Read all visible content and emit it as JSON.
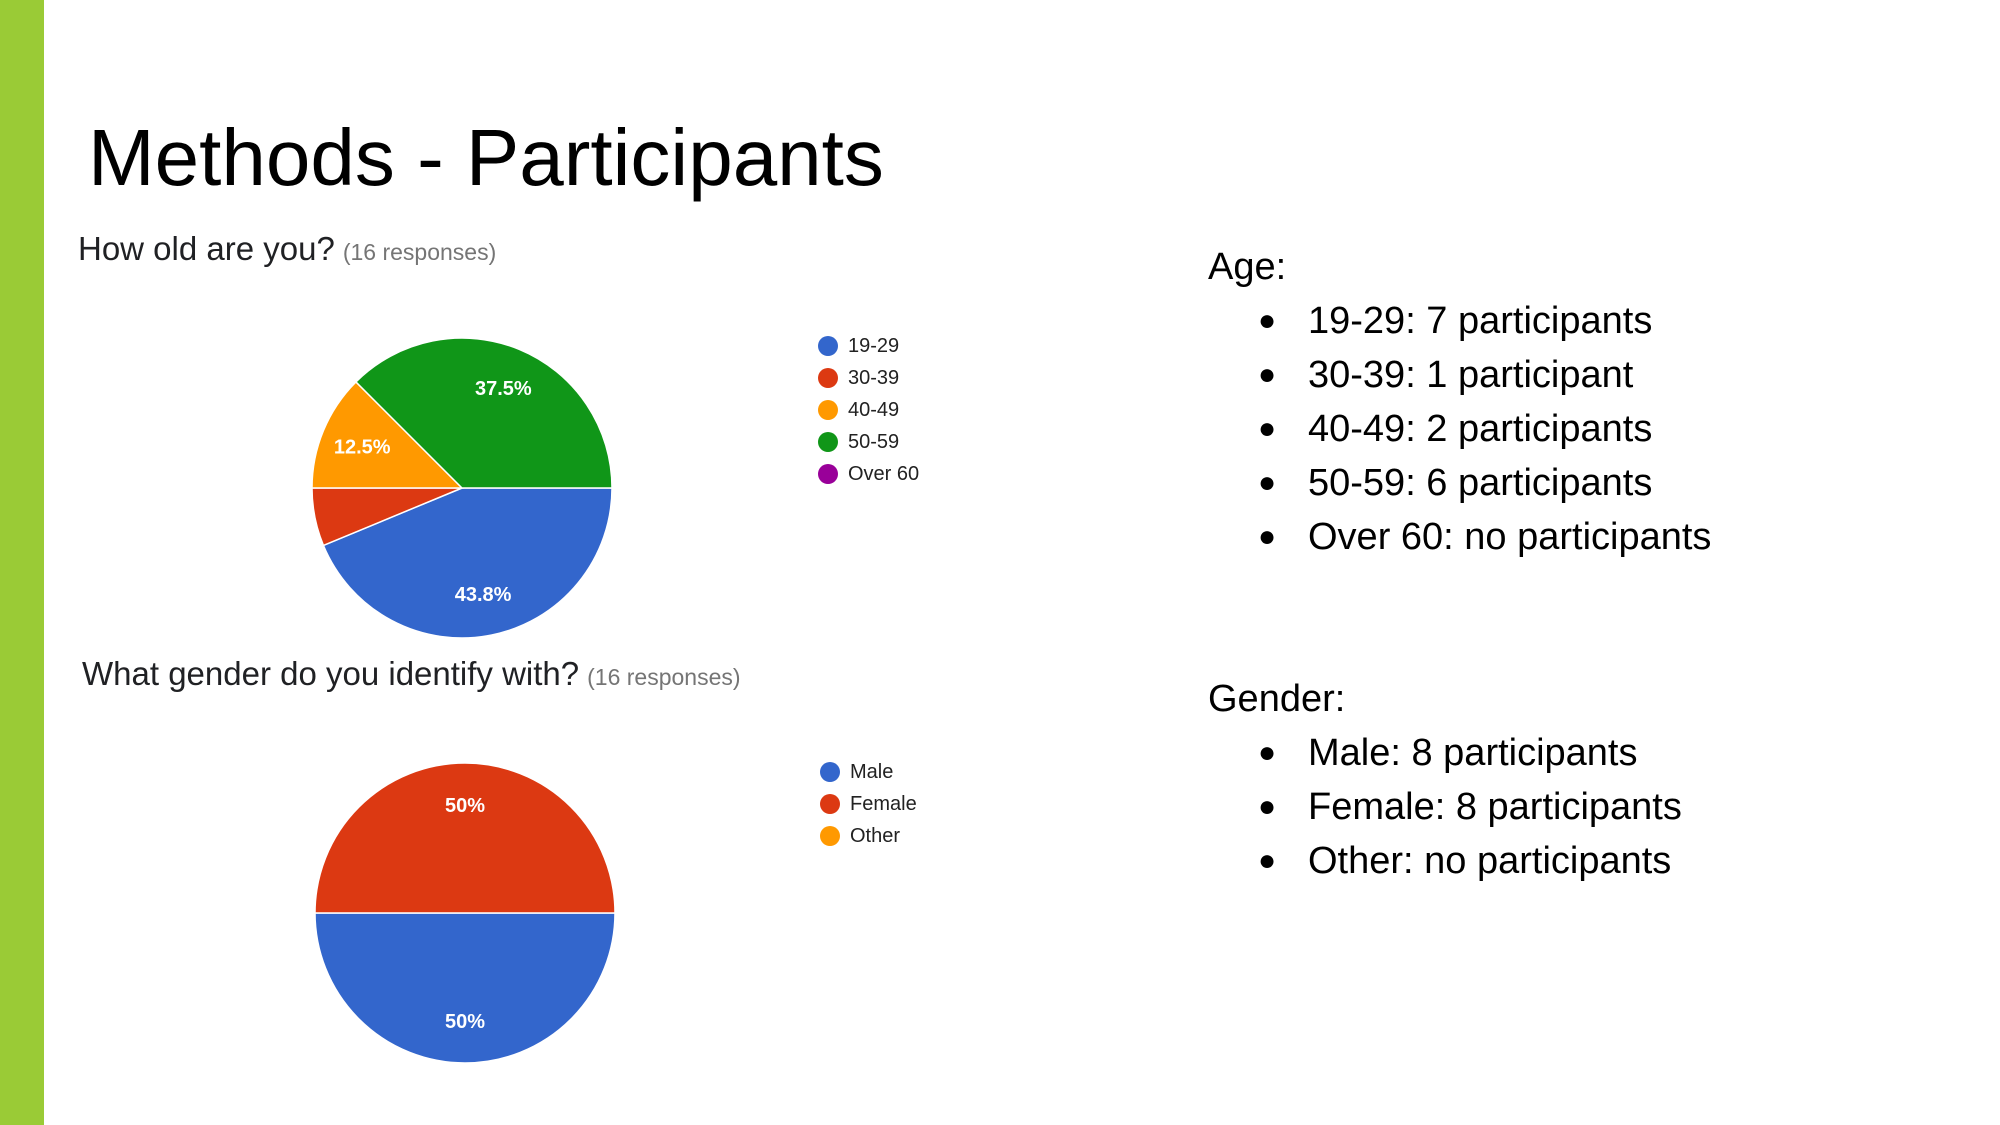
{
  "slide": {
    "title": "Methods - Participants",
    "accent_color": "#9acb36"
  },
  "chart_data": [
    {
      "type": "pie",
      "title": "How old are you?",
      "subtitle": "(16 responses)",
      "categories": [
        "19-29",
        "30-39",
        "40-49",
        "50-59",
        "Over 60"
      ],
      "values": [
        7,
        1,
        2,
        6,
        0
      ],
      "slice_labels": [
        "43.8%",
        "",
        "12.5%",
        "37.5%",
        ""
      ],
      "colors": [
        "#3366cc",
        "#dc3912",
        "#ff9900",
        "#109618",
        "#990099"
      ],
      "legend_position": "right"
    },
    {
      "type": "pie",
      "title": "What gender do you identify with?",
      "subtitle": "(16 responses)",
      "categories": [
        "Male",
        "Female",
        "Other"
      ],
      "values": [
        8,
        8,
        0
      ],
      "slice_labels": [
        "50%",
        "50%",
        ""
      ],
      "colors": [
        "#3366cc",
        "#dc3912",
        "#ff9900"
      ],
      "legend_position": "right"
    }
  ],
  "summary": {
    "age": {
      "heading": "Age:",
      "items": [
        "19-29: 7 participants",
        "30-39: 1 participant",
        "40-49: 2 participants",
        "50-59: 6 participants",
        "Over 60: no participants"
      ]
    },
    "gender": {
      "heading": "Gender:",
      "items": [
        "Male: 8 participants",
        "Female: 8 participants",
        "Other: no participants"
      ]
    }
  },
  "icons": {
    "bullet": "●"
  }
}
